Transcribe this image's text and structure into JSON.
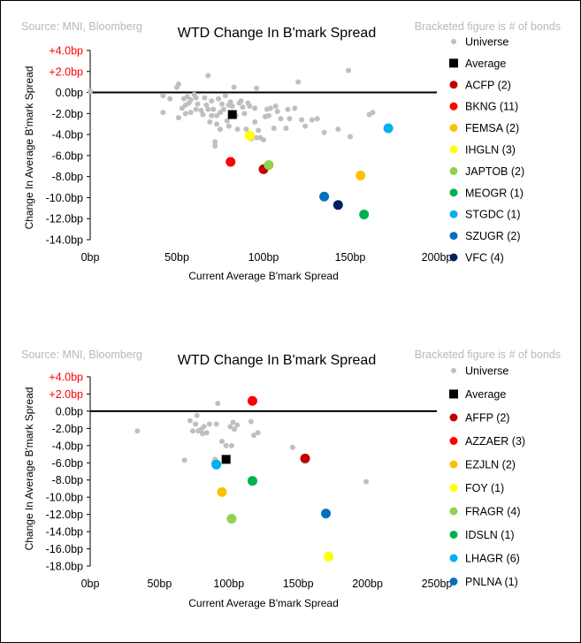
{
  "chart_data": [
    {
      "type": "scatter",
      "title": "WTD Change In B'mark Spread",
      "source": "Source: MNI, Bloomberg",
      "note": "Bracketed figure is # of bonds",
      "xlabel": "Current Average B'mark Spread",
      "ylabel": "Change In Average B'mark Spread",
      "xlim": [
        0,
        200
      ],
      "ylim": [
        -14,
        4
      ],
      "x_ticks": [
        "0bp",
        "50bp",
        "100bp",
        "150bp",
        "200bp"
      ],
      "y_ticks": [
        "+4.0bp",
        "+2.0bp",
        "0.0bp",
        "-2.0bp",
        "-4.0bp",
        "-6.0bp",
        "-8.0bp",
        "-10.0bp",
        "-12.0bp",
        "-14.0bp"
      ],
      "y_tick_colors": [
        "#ff0000",
        "#ff0000",
        "#000000",
        "#000000",
        "#000000",
        "#000000",
        "#000000",
        "#000000",
        "#000000",
        "#000000"
      ],
      "zero_line": true,
      "grid": false,
      "legend_position": "right",
      "universe": {
        "name": "Universe",
        "color": "#bfbfbf",
        "points": [
          [
            0,
            0.1
          ],
          [
            42,
            -0.3
          ],
          [
            42,
            -1.9
          ],
          [
            46,
            -0.6
          ],
          [
            50,
            0.5
          ],
          [
            51,
            0.8
          ],
          [
            51,
            -2.4
          ],
          [
            53,
            -1.5
          ],
          [
            54,
            -0.6
          ],
          [
            55,
            -1.2
          ],
          [
            55,
            -2.0
          ],
          [
            56,
            -0.4
          ],
          [
            57,
            -1.0
          ],
          [
            58,
            -0.7
          ],
          [
            58,
            -1.9
          ],
          [
            60,
            -0.2
          ],
          [
            61,
            -0.5
          ],
          [
            61,
            -1.6
          ],
          [
            62,
            -1.1
          ],
          [
            64,
            -1.7
          ],
          [
            65,
            -2.1
          ],
          [
            66,
            -0.5
          ],
          [
            67,
            -1.2
          ],
          [
            68,
            -1.6
          ],
          [
            68,
            1.6
          ],
          [
            69,
            -2.8
          ],
          [
            70,
            -0.8
          ],
          [
            70,
            -2.2
          ],
          [
            71,
            -1.6
          ],
          [
            72,
            -4.7
          ],
          [
            72,
            -5.1
          ],
          [
            73,
            -2.2
          ],
          [
            73,
            -3.0
          ],
          [
            74,
            -0.6
          ],
          [
            75,
            -1.9
          ],
          [
            75,
            -3.5
          ],
          [
            76,
            -1.1
          ],
          [
            77,
            -1.6
          ],
          [
            78,
            -0.3
          ],
          [
            79,
            -2.7
          ],
          [
            80,
            -1.2
          ],
          [
            80,
            -3.2
          ],
          [
            81,
            -0.9
          ],
          [
            82,
            -1.3
          ],
          [
            83,
            0.5
          ],
          [
            84,
            -2.2
          ],
          [
            85,
            -3.5
          ],
          [
            86,
            -1.0
          ],
          [
            87,
            -0.8
          ],
          [
            88,
            -1.4
          ],
          [
            89,
            -2.0
          ],
          [
            90,
            -3.5
          ],
          [
            91,
            -1.0
          ],
          [
            92,
            -1.3
          ],
          [
            93,
            -4.4
          ],
          [
            95,
            -1.5
          ],
          [
            95,
            -2.8
          ],
          [
            96,
            0.4
          ],
          [
            96,
            -4.3
          ],
          [
            97,
            -3.6
          ],
          [
            98,
            -4.3
          ],
          [
            100,
            -4.5
          ],
          [
            101,
            -2.3
          ],
          [
            102,
            -1.6
          ],
          [
            103,
            -2.2
          ],
          [
            104,
            -1.5
          ],
          [
            106,
            -3.4
          ],
          [
            107,
            -1.3
          ],
          [
            108,
            -1.8
          ],
          [
            110,
            -2.5
          ],
          [
            113,
            -3.4
          ],
          [
            114,
            -1.6
          ],
          [
            115,
            -2.5
          ],
          [
            118,
            -1.5
          ],
          [
            120,
            1.0
          ],
          [
            122,
            -2.6
          ],
          [
            124,
            -3.2
          ],
          [
            128,
            -2.6
          ],
          [
            131,
            -2.5
          ],
          [
            135,
            -3.8
          ],
          [
            143,
            -3.5
          ],
          [
            149,
            2.1
          ],
          [
            150,
            -4.2
          ],
          [
            161,
            -2.1
          ],
          [
            163,
            -1.9
          ]
        ]
      },
      "average": {
        "name": "Average",
        "color": "#000000",
        "x": 82,
        "y": -2.1
      },
      "series": [
        {
          "name": "ACFP",
          "count": "(2)",
          "color": "#c00000",
          "x": 100,
          "y": -7.3
        },
        {
          "name": "BKNG",
          "count": "(11)",
          "color": "#ff0000",
          "x": 81,
          "y": -6.6
        },
        {
          "name": "FEMSA",
          "count": "(2)",
          "color": "#ffc000",
          "x": 156,
          "y": -7.9
        },
        {
          "name": "IHGLN",
          "count": "(3)",
          "color": "#ffff00",
          "x": 92,
          "y": -4.1
        },
        {
          "name": "JAPTOB",
          "count": "(2)",
          "color": "#92d050",
          "x": 103,
          "y": -6.9
        },
        {
          "name": "MEOGR",
          "count": "(1)",
          "color": "#00b050",
          "x": 158,
          "y": -11.6
        },
        {
          "name": "STGDC",
          "count": "(1)",
          "color": "#00b0f0",
          "x": 172,
          "y": -3.4
        },
        {
          "name": "SZUGR",
          "count": "(2)",
          "color": "#0070c0",
          "x": 135,
          "y": -9.9
        },
        {
          "name": "VFC",
          "count": "(4)",
          "color": "#002060",
          "x": 143,
          "y": -10.7
        }
      ]
    },
    {
      "type": "scatter",
      "title": "WTD Change In B'mark Spread",
      "source": "Source: MNI, Bloomberg",
      "note": "Bracketed figure is # of bonds",
      "xlabel": "Current Average B'mark Spread",
      "ylabel": "Change In Average B'mark Spread",
      "xlim": [
        0,
        250
      ],
      "ylim": [
        -18,
        4
      ],
      "x_ticks": [
        "0bp",
        "50bp",
        "100bp",
        "150bp",
        "200bp",
        "250bp"
      ],
      "y_ticks": [
        "+4.0bp",
        "+2.0bp",
        "0.0bp",
        "-2.0bp",
        "-4.0bp",
        "-6.0bp",
        "-8.0bp",
        "-10.0bp",
        "-12.0bp",
        "-14.0bp",
        "-16.0bp",
        "-18.0bp"
      ],
      "y_tick_colors": [
        "#ff0000",
        "#ff0000",
        "#000000",
        "#000000",
        "#000000",
        "#000000",
        "#000000",
        "#000000",
        "#000000",
        "#000000",
        "#000000",
        "#000000"
      ],
      "zero_line": true,
      "grid": false,
      "legend_position": "right",
      "universe": {
        "name": "Universe",
        "color": "#bfbfbf",
        "points": [
          [
            34,
            -2.3
          ],
          [
            68,
            -5.7
          ],
          [
            72,
            -1.1
          ],
          [
            74,
            -2.3
          ],
          [
            76,
            -1.5
          ],
          [
            77,
            -0.5
          ],
          [
            78,
            -2.3
          ],
          [
            80,
            -2.1
          ],
          [
            81,
            -2.6
          ],
          [
            82,
            -1.8
          ],
          [
            84,
            -2.5
          ],
          [
            86,
            -1.5
          ],
          [
            89,
            -6.0
          ],
          [
            90,
            -5.6
          ],
          [
            91,
            -1.5
          ],
          [
            92,
            0.9
          ],
          [
            95,
            -3.5
          ],
          [
            98,
            -4.0
          ],
          [
            101,
            -1.8
          ],
          [
            102,
            -4.0
          ],
          [
            103,
            -1.3
          ],
          [
            104,
            -2.1
          ],
          [
            106,
            -1.6
          ],
          [
            116,
            -1.2
          ],
          [
            118,
            -2.8
          ],
          [
            121,
            -2.5
          ],
          [
            146,
            -4.2
          ],
          [
            199,
            -8.2
          ]
        ]
      },
      "average": {
        "name": "Average",
        "color": "#000000",
        "x": 98,
        "y": -5.6
      },
      "series": [
        {
          "name": "AFFP",
          "count": "(2)",
          "color": "#c00000",
          "x": 155,
          "y": -5.5
        },
        {
          "name": "AZZAER",
          "count": "(3)",
          "color": "#ff0000",
          "x": 117,
          "y": 1.2
        },
        {
          "name": "EZJLN",
          "count": "(2)",
          "color": "#ffc000",
          "x": 95,
          "y": -9.4
        },
        {
          "name": "FOY",
          "count": "(1)",
          "color": "#ffff00",
          "x": 172,
          "y": -16.9
        },
        {
          "name": "FRAGR",
          "count": "(4)",
          "color": "#92d050",
          "x": 102,
          "y": -12.5
        },
        {
          "name": "IDSLN",
          "count": "(1)",
          "color": "#00b050",
          "x": 117,
          "y": -8.1
        },
        {
          "name": "LHAGR",
          "count": "(6)",
          "color": "#00b0f0",
          "x": 91,
          "y": -6.2
        },
        {
          "name": "PNLNA",
          "count": "(1)",
          "color": "#0070c0",
          "x": 170,
          "y": -11.9
        }
      ]
    }
  ]
}
